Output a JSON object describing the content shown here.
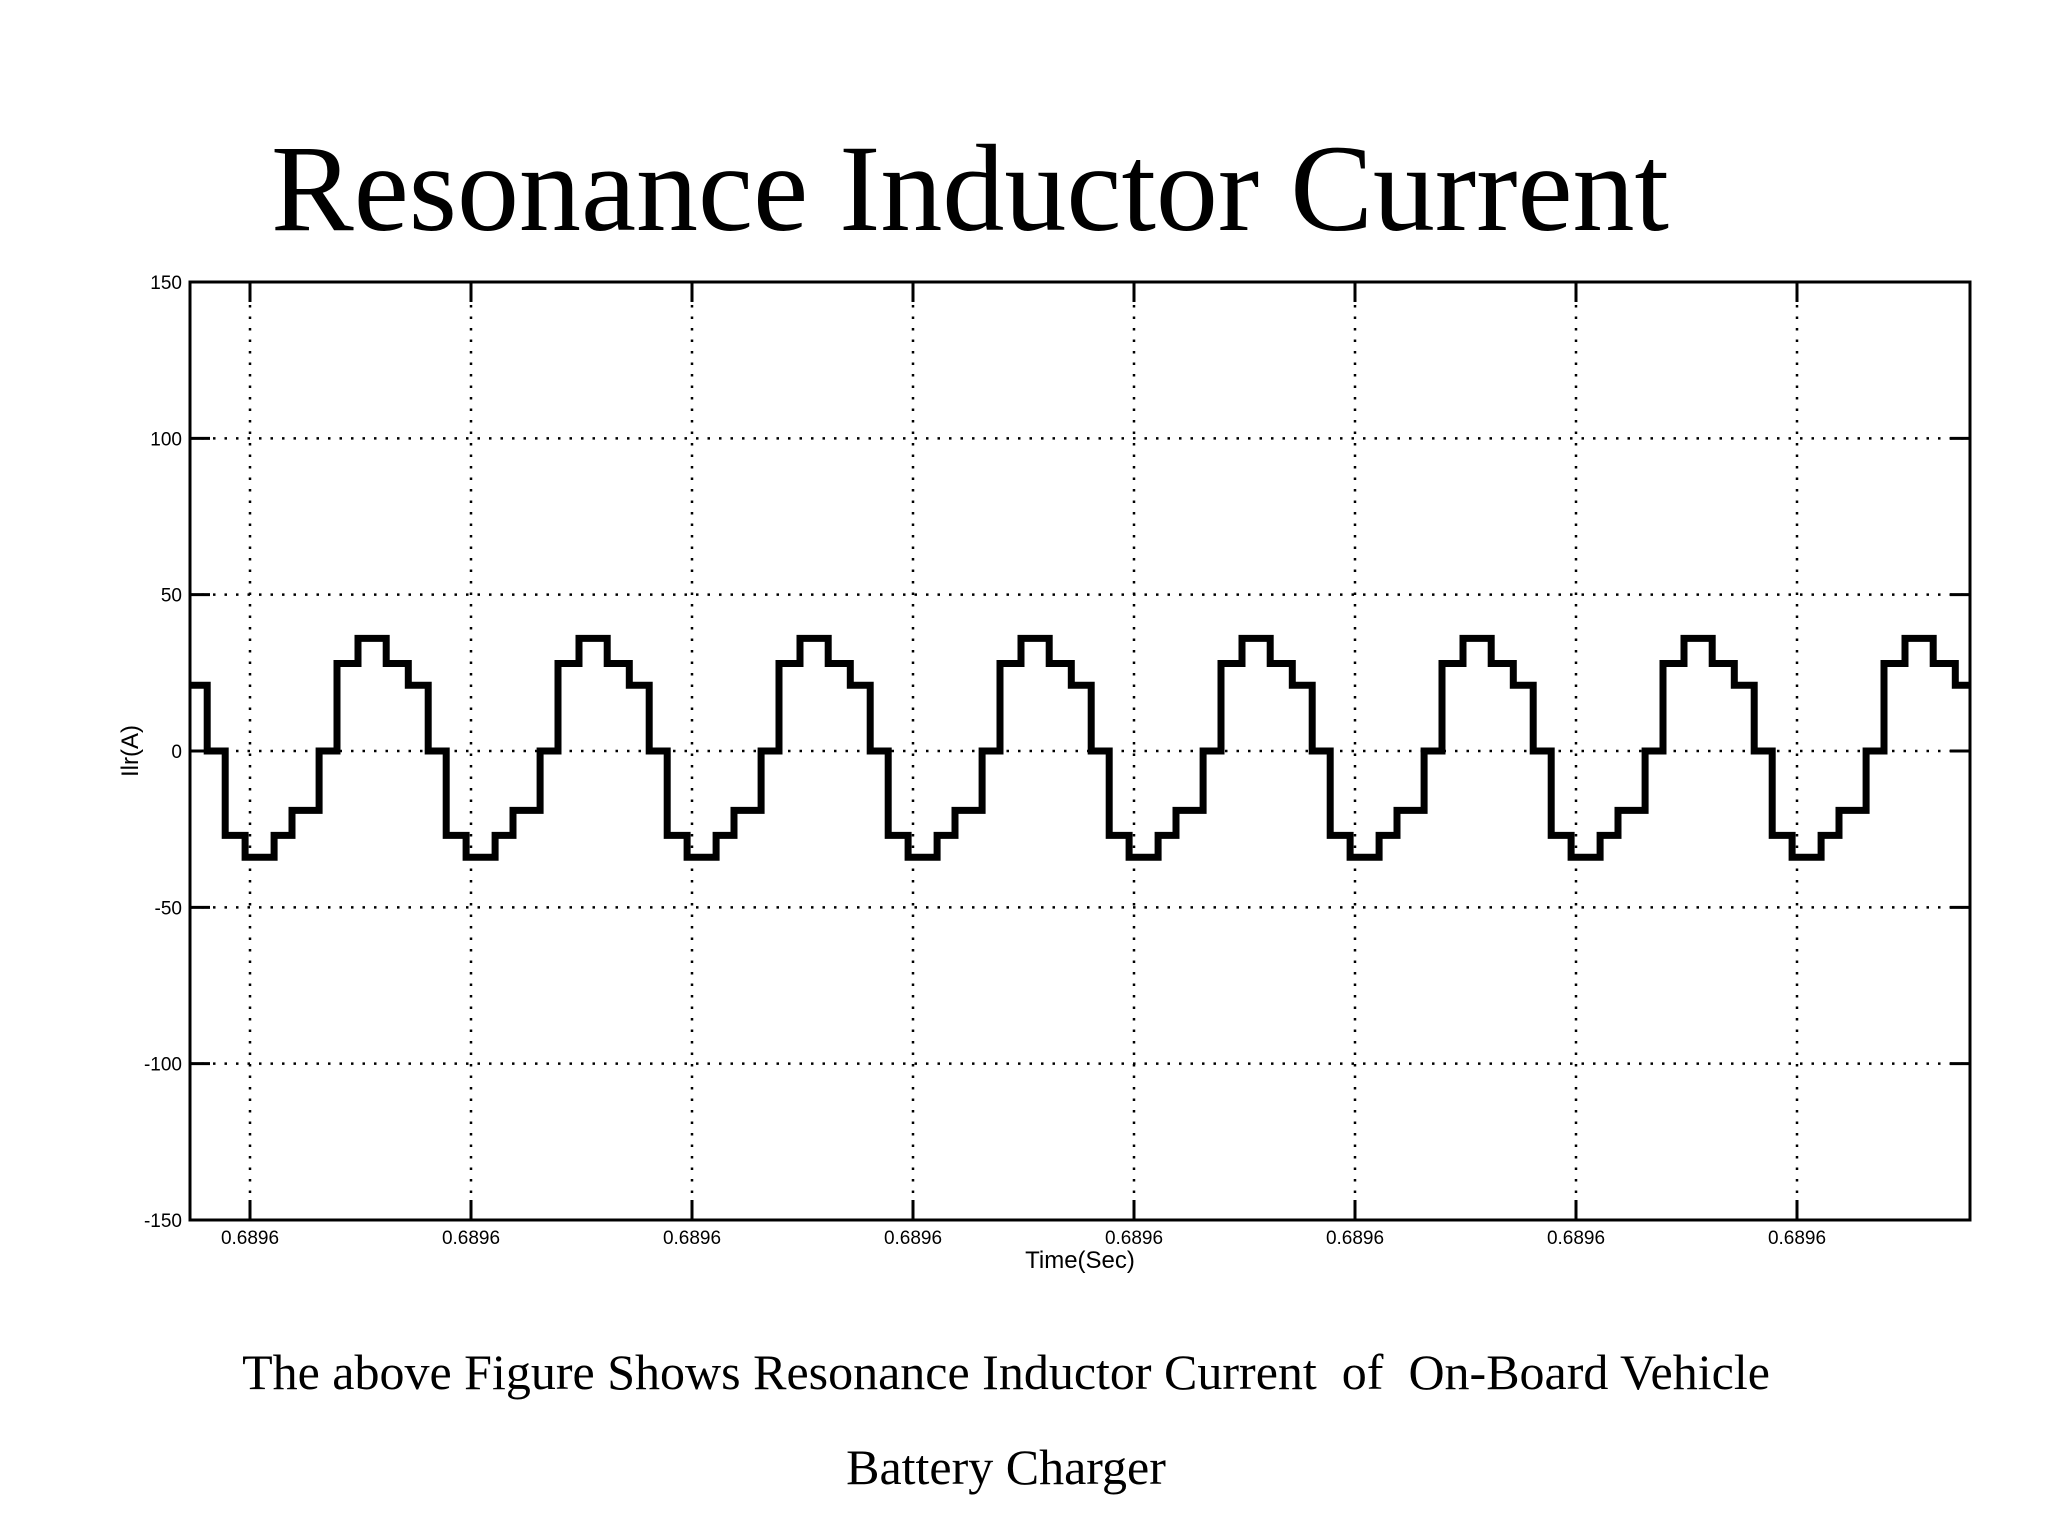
{
  "page": {
    "title": "Resonance Inductor Current",
    "caption": [
      "The above Figure Shows Resonance Inductor Current  of  On-Board Vehicle",
      "Battery Charger"
    ]
  },
  "chart_data": {
    "type": "line",
    "title": "Resonance Inductor Current",
    "xlabel": "Time(Sec)",
    "ylabel": "Ilr(A)",
    "x_tick_labels": [
      "0.6896",
      "0.6896",
      "0.6896",
      "0.6896",
      "0.6896",
      "0.6896",
      "0.6896",
      "0.6896"
    ],
    "y_ticks": [
      150,
      100,
      50,
      0,
      -50,
      -100,
      -150
    ],
    "y_tick_labels": [
      "150",
      "100",
      "50",
      "0",
      "-50",
      "-100",
      "-150"
    ],
    "ylim": [
      -150,
      150
    ],
    "grid": "dotted",
    "legend": "none",
    "line_color": "#000000",
    "background_color": "#ffffff",
    "waveform": {
      "shape": "staircase-sine",
      "period_equals_x_tick_spacing": true,
      "periods_visible": 8.05,
      "peak_A": 36,
      "trough_A": -34,
      "phase_offset_frac_at_left_edge": 0.416,
      "period_steps": [
        {
          "level_A": 0,
          "width_frac": 0.081
        },
        {
          "level_A": 28,
          "width_frac": 0.095
        },
        {
          "level_A": 36,
          "width_frac": 0.127
        },
        {
          "level_A": 28,
          "width_frac": 0.1
        },
        {
          "level_A": 21,
          "width_frac": 0.09
        },
        {
          "level_A": 0,
          "width_frac": 0.081
        },
        {
          "level_A": -27,
          "width_frac": 0.09
        },
        {
          "level_A": -34,
          "width_frac": 0.131
        },
        {
          "level_A": -27,
          "width_frac": 0.081
        },
        {
          "level_A": -19,
          "width_frac": 0.122
        }
      ]
    }
  }
}
